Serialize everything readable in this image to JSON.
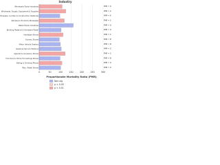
{
  "chart_data": {
    "type": "barh",
    "title": "Industry",
    "categories": [
      "Wholesale Trade Industries",
      "Wholesale, Supply, Equipment & Supplies",
      "Wholesale, Lumber & Construction Materials",
      "Petroleum Products Wholesale",
      "Retail Trade Industries",
      "Building Material & Hardware Retail",
      "Hardware Stores",
      "Grocery Stores",
      "Motor Vehicle Dealers",
      "Gasoline Service Stations",
      "Apparel & Accessory Stores",
      "Furniture & Home Furnishings Stores",
      "Eating & Drinking Places",
      "Misc. Retail Stores"
    ],
    "values": [
      108,
      125,
      97,
      118,
      160,
      103,
      112,
      95,
      99,
      104,
      122,
      98,
      107,
      101
    ],
    "value_labels": [
      "PMR = 108",
      "PMR = 125",
      "PMR = 97",
      "PMR = 118",
      "PMR = 160",
      "PMR = 103",
      "PMR = 112",
      "PMR = 95",
      "PMR = 99",
      "PMR = 104",
      "PMR = 122",
      "PMR = 98",
      "PMR = 107",
      "PMR = 101"
    ],
    "colors": [
      "#f4a6a6",
      "#f4a6a6",
      "#aab4f0",
      "#f4a6a6",
      "#aab4f0",
      "#aab4f0",
      "#f4a6a6",
      "#aab4f0",
      "#aab4f0",
      "#aab4f0",
      "#f4a6a6",
      "#aab4f0",
      "#f4a6a6",
      "#aab4f0"
    ],
    "xlabel": "Proportionate Mortality Ratio (PMR)",
    "xlim": [
      0,
      300
    ],
    "xticks": [
      0,
      50,
      100,
      150,
      200,
      250,
      300
    ],
    "legend": [
      {
        "name": "Non-sig",
        "color": "#aab4f0"
      },
      {
        "name": "p < 0.05",
        "color": "#f7cccc"
      },
      {
        "name": "p < 0.01",
        "color": "#f4a6a6"
      }
    ]
  }
}
